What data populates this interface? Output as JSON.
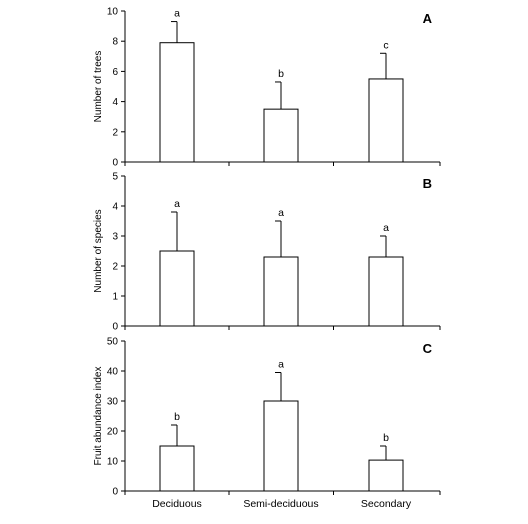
{
  "chart_data": [
    {
      "type": "bar",
      "panel_label": "A",
      "categories": [
        "Deciduous",
        "Semi-deciduous",
        "Secondary"
      ],
      "values": [
        7.9,
        3.5,
        5.5
      ],
      "error_upper": [
        9.3,
        5.3,
        7.2
      ],
      "significance": [
        "a",
        "b",
        "c"
      ],
      "ylabel": "Number of trees",
      "ylim": [
        0,
        10
      ],
      "yticks": [
        "0",
        "2",
        "4",
        "6",
        "8",
        "10"
      ],
      "xlabel": "",
      "grid": false,
      "show_category_labels": false
    },
    {
      "type": "bar",
      "panel_label": "B",
      "categories": [
        "Deciduous",
        "Semi-deciduous",
        "Secondary"
      ],
      "values": [
        2.5,
        2.3,
        2.3
      ],
      "error_upper": [
        3.8,
        3.5,
        3.0
      ],
      "significance": [
        "a",
        "a",
        "a"
      ],
      "ylabel": "Number of species",
      "ylim": [
        0,
        5
      ],
      "yticks": [
        "0",
        "1",
        "2",
        "3",
        "4",
        "5"
      ],
      "xlabel": "",
      "grid": false,
      "show_category_labels": false
    },
    {
      "type": "bar",
      "panel_label": "C",
      "categories": [
        "Deciduous",
        "Semi-deciduous",
        "Secondary"
      ],
      "values": [
        15,
        30,
        10.3
      ],
      "error_upper": [
        22,
        39.5,
        15
      ],
      "significance": [
        "b",
        "a",
        "b"
      ],
      "ylabel": "Fruit abundance index",
      "ylim": [
        0,
        50
      ],
      "yticks": [
        "0",
        "10",
        "20",
        "30",
        "40",
        "50"
      ],
      "xlabel": "",
      "grid": false,
      "show_category_labels": true
    }
  ],
  "colors": {
    "bar_fill": "#ffffff",
    "stroke": "#000000"
  }
}
